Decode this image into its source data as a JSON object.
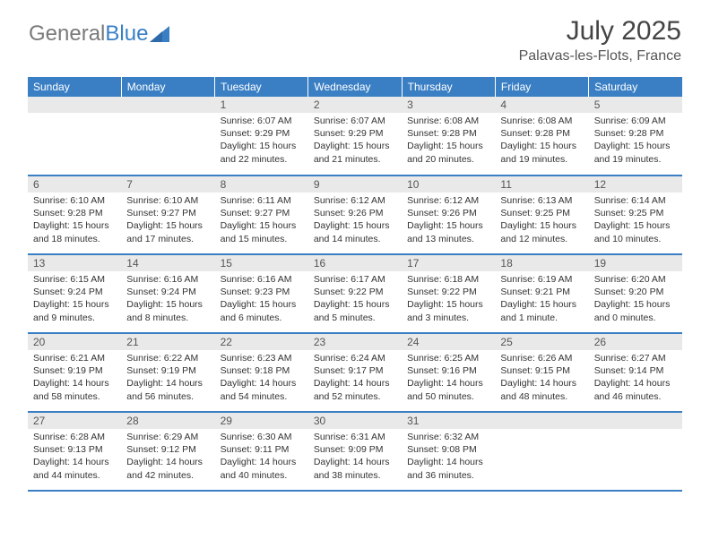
{
  "logo": {
    "text1": "General",
    "text2": "Blue"
  },
  "title": "July 2025",
  "location": "Palavas-les-Flots, France",
  "colors": {
    "header_bg": "#3a7fc4",
    "header_text": "#ffffff",
    "daynum_bg": "#e9e9e9",
    "border": "#3a7fc4",
    "body_text": "#333333"
  },
  "fonts": {
    "title_size": 30,
    "location_size": 16,
    "header_size": 12,
    "body_size": 10.5
  },
  "weekdays": [
    "Sunday",
    "Monday",
    "Tuesday",
    "Wednesday",
    "Thursday",
    "Friday",
    "Saturday"
  ],
  "calendar": {
    "first_weekday_index": 2,
    "days_in_month": 31
  },
  "days": {
    "1": {
      "sunrise": "6:07 AM",
      "sunset": "9:29 PM",
      "daylight": "15 hours and 22 minutes."
    },
    "2": {
      "sunrise": "6:07 AM",
      "sunset": "9:29 PM",
      "daylight": "15 hours and 21 minutes."
    },
    "3": {
      "sunrise": "6:08 AM",
      "sunset": "9:28 PM",
      "daylight": "15 hours and 20 minutes."
    },
    "4": {
      "sunrise": "6:08 AM",
      "sunset": "9:28 PM",
      "daylight": "15 hours and 19 minutes."
    },
    "5": {
      "sunrise": "6:09 AM",
      "sunset": "9:28 PM",
      "daylight": "15 hours and 19 minutes."
    },
    "6": {
      "sunrise": "6:10 AM",
      "sunset": "9:28 PM",
      "daylight": "15 hours and 18 minutes."
    },
    "7": {
      "sunrise": "6:10 AM",
      "sunset": "9:27 PM",
      "daylight": "15 hours and 17 minutes."
    },
    "8": {
      "sunrise": "6:11 AM",
      "sunset": "9:27 PM",
      "daylight": "15 hours and 15 minutes."
    },
    "9": {
      "sunrise": "6:12 AM",
      "sunset": "9:26 PM",
      "daylight": "15 hours and 14 minutes."
    },
    "10": {
      "sunrise": "6:12 AM",
      "sunset": "9:26 PM",
      "daylight": "15 hours and 13 minutes."
    },
    "11": {
      "sunrise": "6:13 AM",
      "sunset": "9:25 PM",
      "daylight": "15 hours and 12 minutes."
    },
    "12": {
      "sunrise": "6:14 AM",
      "sunset": "9:25 PM",
      "daylight": "15 hours and 10 minutes."
    },
    "13": {
      "sunrise": "6:15 AM",
      "sunset": "9:24 PM",
      "daylight": "15 hours and 9 minutes."
    },
    "14": {
      "sunrise": "6:16 AM",
      "sunset": "9:24 PM",
      "daylight": "15 hours and 8 minutes."
    },
    "15": {
      "sunrise": "6:16 AM",
      "sunset": "9:23 PM",
      "daylight": "15 hours and 6 minutes."
    },
    "16": {
      "sunrise": "6:17 AM",
      "sunset": "9:22 PM",
      "daylight": "15 hours and 5 minutes."
    },
    "17": {
      "sunrise": "6:18 AM",
      "sunset": "9:22 PM",
      "daylight": "15 hours and 3 minutes."
    },
    "18": {
      "sunrise": "6:19 AM",
      "sunset": "9:21 PM",
      "daylight": "15 hours and 1 minute."
    },
    "19": {
      "sunrise": "6:20 AM",
      "sunset": "9:20 PM",
      "daylight": "15 hours and 0 minutes."
    },
    "20": {
      "sunrise": "6:21 AM",
      "sunset": "9:19 PM",
      "daylight": "14 hours and 58 minutes."
    },
    "21": {
      "sunrise": "6:22 AM",
      "sunset": "9:19 PM",
      "daylight": "14 hours and 56 minutes."
    },
    "22": {
      "sunrise": "6:23 AM",
      "sunset": "9:18 PM",
      "daylight": "14 hours and 54 minutes."
    },
    "23": {
      "sunrise": "6:24 AM",
      "sunset": "9:17 PM",
      "daylight": "14 hours and 52 minutes."
    },
    "24": {
      "sunrise": "6:25 AM",
      "sunset": "9:16 PM",
      "daylight": "14 hours and 50 minutes."
    },
    "25": {
      "sunrise": "6:26 AM",
      "sunset": "9:15 PM",
      "daylight": "14 hours and 48 minutes."
    },
    "26": {
      "sunrise": "6:27 AM",
      "sunset": "9:14 PM",
      "daylight": "14 hours and 46 minutes."
    },
    "27": {
      "sunrise": "6:28 AM",
      "sunset": "9:13 PM",
      "daylight": "14 hours and 44 minutes."
    },
    "28": {
      "sunrise": "6:29 AM",
      "sunset": "9:12 PM",
      "daylight": "14 hours and 42 minutes."
    },
    "29": {
      "sunrise": "6:30 AM",
      "sunset": "9:11 PM",
      "daylight": "14 hours and 40 minutes."
    },
    "30": {
      "sunrise": "6:31 AM",
      "sunset": "9:09 PM",
      "daylight": "14 hours and 38 minutes."
    },
    "31": {
      "sunrise": "6:32 AM",
      "sunset": "9:08 PM",
      "daylight": "14 hours and 36 minutes."
    }
  },
  "labels": {
    "sunrise": "Sunrise:",
    "sunset": "Sunset:",
    "daylight": "Daylight:"
  }
}
